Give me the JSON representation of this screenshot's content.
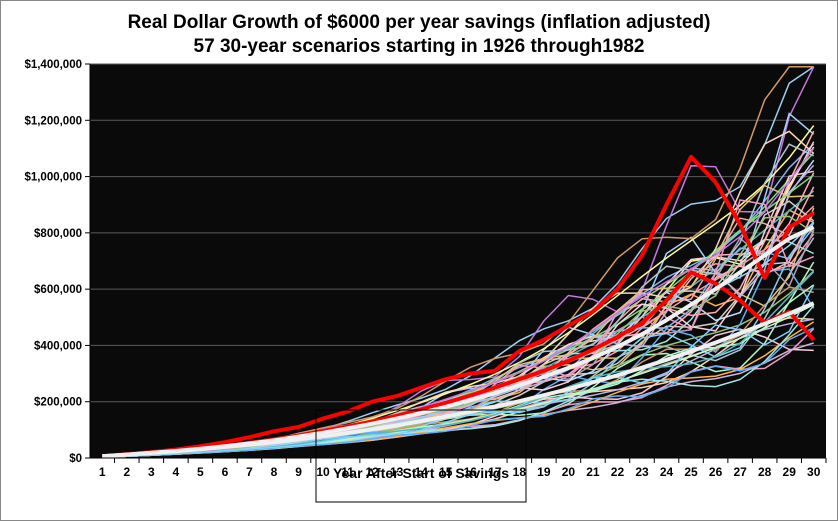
{
  "chart_data": {
    "type": "line",
    "title": "Real Dollar Growth of $6000 per year savings (inflation adjusted)",
    "subtitle": "57  30-year scenarios starting in 1926 through1982",
    "xlabel": "Year After Start of Savings",
    "ylabel": "",
    "x": [
      1,
      2,
      3,
      4,
      5,
      6,
      7,
      8,
      9,
      10,
      11,
      12,
      13,
      14,
      15,
      16,
      17,
      18,
      19,
      20,
      21,
      22,
      23,
      24,
      25,
      26,
      27,
      28,
      29,
      30
    ],
    "ylim": [
      0,
      1400000
    ],
    "yticks": [
      "$0",
      "$200,000",
      "$400,000",
      "$600,000",
      "$800,000",
      "$1,000,000",
      "$1,200,000",
      "$1,400,000"
    ],
    "ytick_values": [
      0,
      200000,
      400000,
      600000,
      800000,
      1000000,
      1200000,
      1400000
    ],
    "grid": "horizontal",
    "background": "#0a0a0a",
    "scenario_count": 57,
    "highlighted_series": [
      {
        "color": "#ff0000",
        "values": [
          6000,
          13000,
          21000,
          30000,
          42000,
          56000,
          74000,
          95000,
          110000,
          140000,
          165000,
          200000,
          220000,
          250000,
          280000,
          300000,
          310000,
          380000,
          420000,
          470000,
          520000,
          600000,
          720000,
          900000,
          1070000,
          980000,
          830000,
          640000,
          820000,
          870000
        ]
      },
      {
        "color": "#ff0000",
        "values": [
          6000,
          12000,
          19000,
          26000,
          34000,
          43000,
          54000,
          66000,
          80000,
          96000,
          112000,
          130000,
          150000,
          172000,
          196000,
          222000,
          250000,
          280000,
          310000,
          345000,
          385000,
          430000,
          480000,
          560000,
          660000,
          620000,
          560000,
          480000,
          520000,
          420000
        ]
      },
      {
        "color": "#f0f0f0",
        "values": [
          6000,
          12000,
          18000,
          25000,
          33000,
          42000,
          52000,
          63000,
          76000,
          90000,
          105000,
          122000,
          140000,
          160000,
          182000,
          205000,
          230000,
          258000,
          288000,
          320000,
          355000,
          395000,
          440000,
          490000,
          545000,
          600000,
          660000,
          720000,
          780000,
          820000
        ]
      },
      {
        "color": "#f0f0f0",
        "values": [
          6000,
          12000,
          18000,
          24000,
          31000,
          39000,
          47000,
          56000,
          66000,
          77000,
          89000,
          102000,
          116000,
          131000,
          147000,
          164000,
          182000,
          202000,
          223000,
          245000,
          269000,
          294000,
          321000,
          349000,
          379000,
          410000,
          443000,
          477000,
          513000,
          550000
        ]
      }
    ]
  }
}
